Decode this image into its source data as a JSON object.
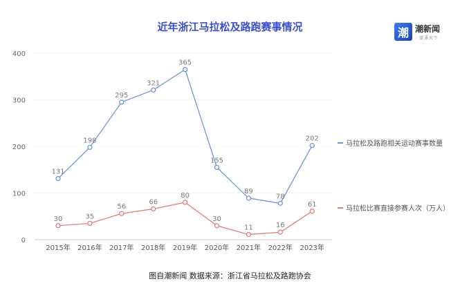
{
  "title": "近年浙江马拉松及路跑赛事情况",
  "logo": {
    "glyph": "潮",
    "name": "潮新闻",
    "sub": "· 潮涌天下 ·"
  },
  "credit": "图自潮新闻  数据来源：浙江省马拉松及路跑协会",
  "colors": {
    "series1": "#6f93e3",
    "series2": "#e07f7c",
    "title": "#3a4fd0"
  },
  "chart_data": {
    "type": "line",
    "title": "近年浙江马拉松及路跑赛事情况",
    "categories": [
      "2015年",
      "2016年",
      "2017年",
      "2018年",
      "2019年",
      "2020年",
      "2021年",
      "2022年",
      "2023年"
    ],
    "series": [
      {
        "name": "马拉松及路跑相关运动赛事数量",
        "values": [
          131,
          198,
          295,
          321,
          365,
          155,
          89,
          78,
          202
        ]
      },
      {
        "name": "马拉松比赛直接参赛人次（万人）",
        "values": [
          30,
          35,
          56,
          66,
          80,
          30,
          11,
          16,
          61
        ]
      }
    ],
    "yticks": [
      0,
      100,
      200,
      300,
      400
    ],
    "ylim": [
      0,
      400
    ],
    "grid": true,
    "legend_position": "right",
    "xlabel": "",
    "ylabel": ""
  }
}
